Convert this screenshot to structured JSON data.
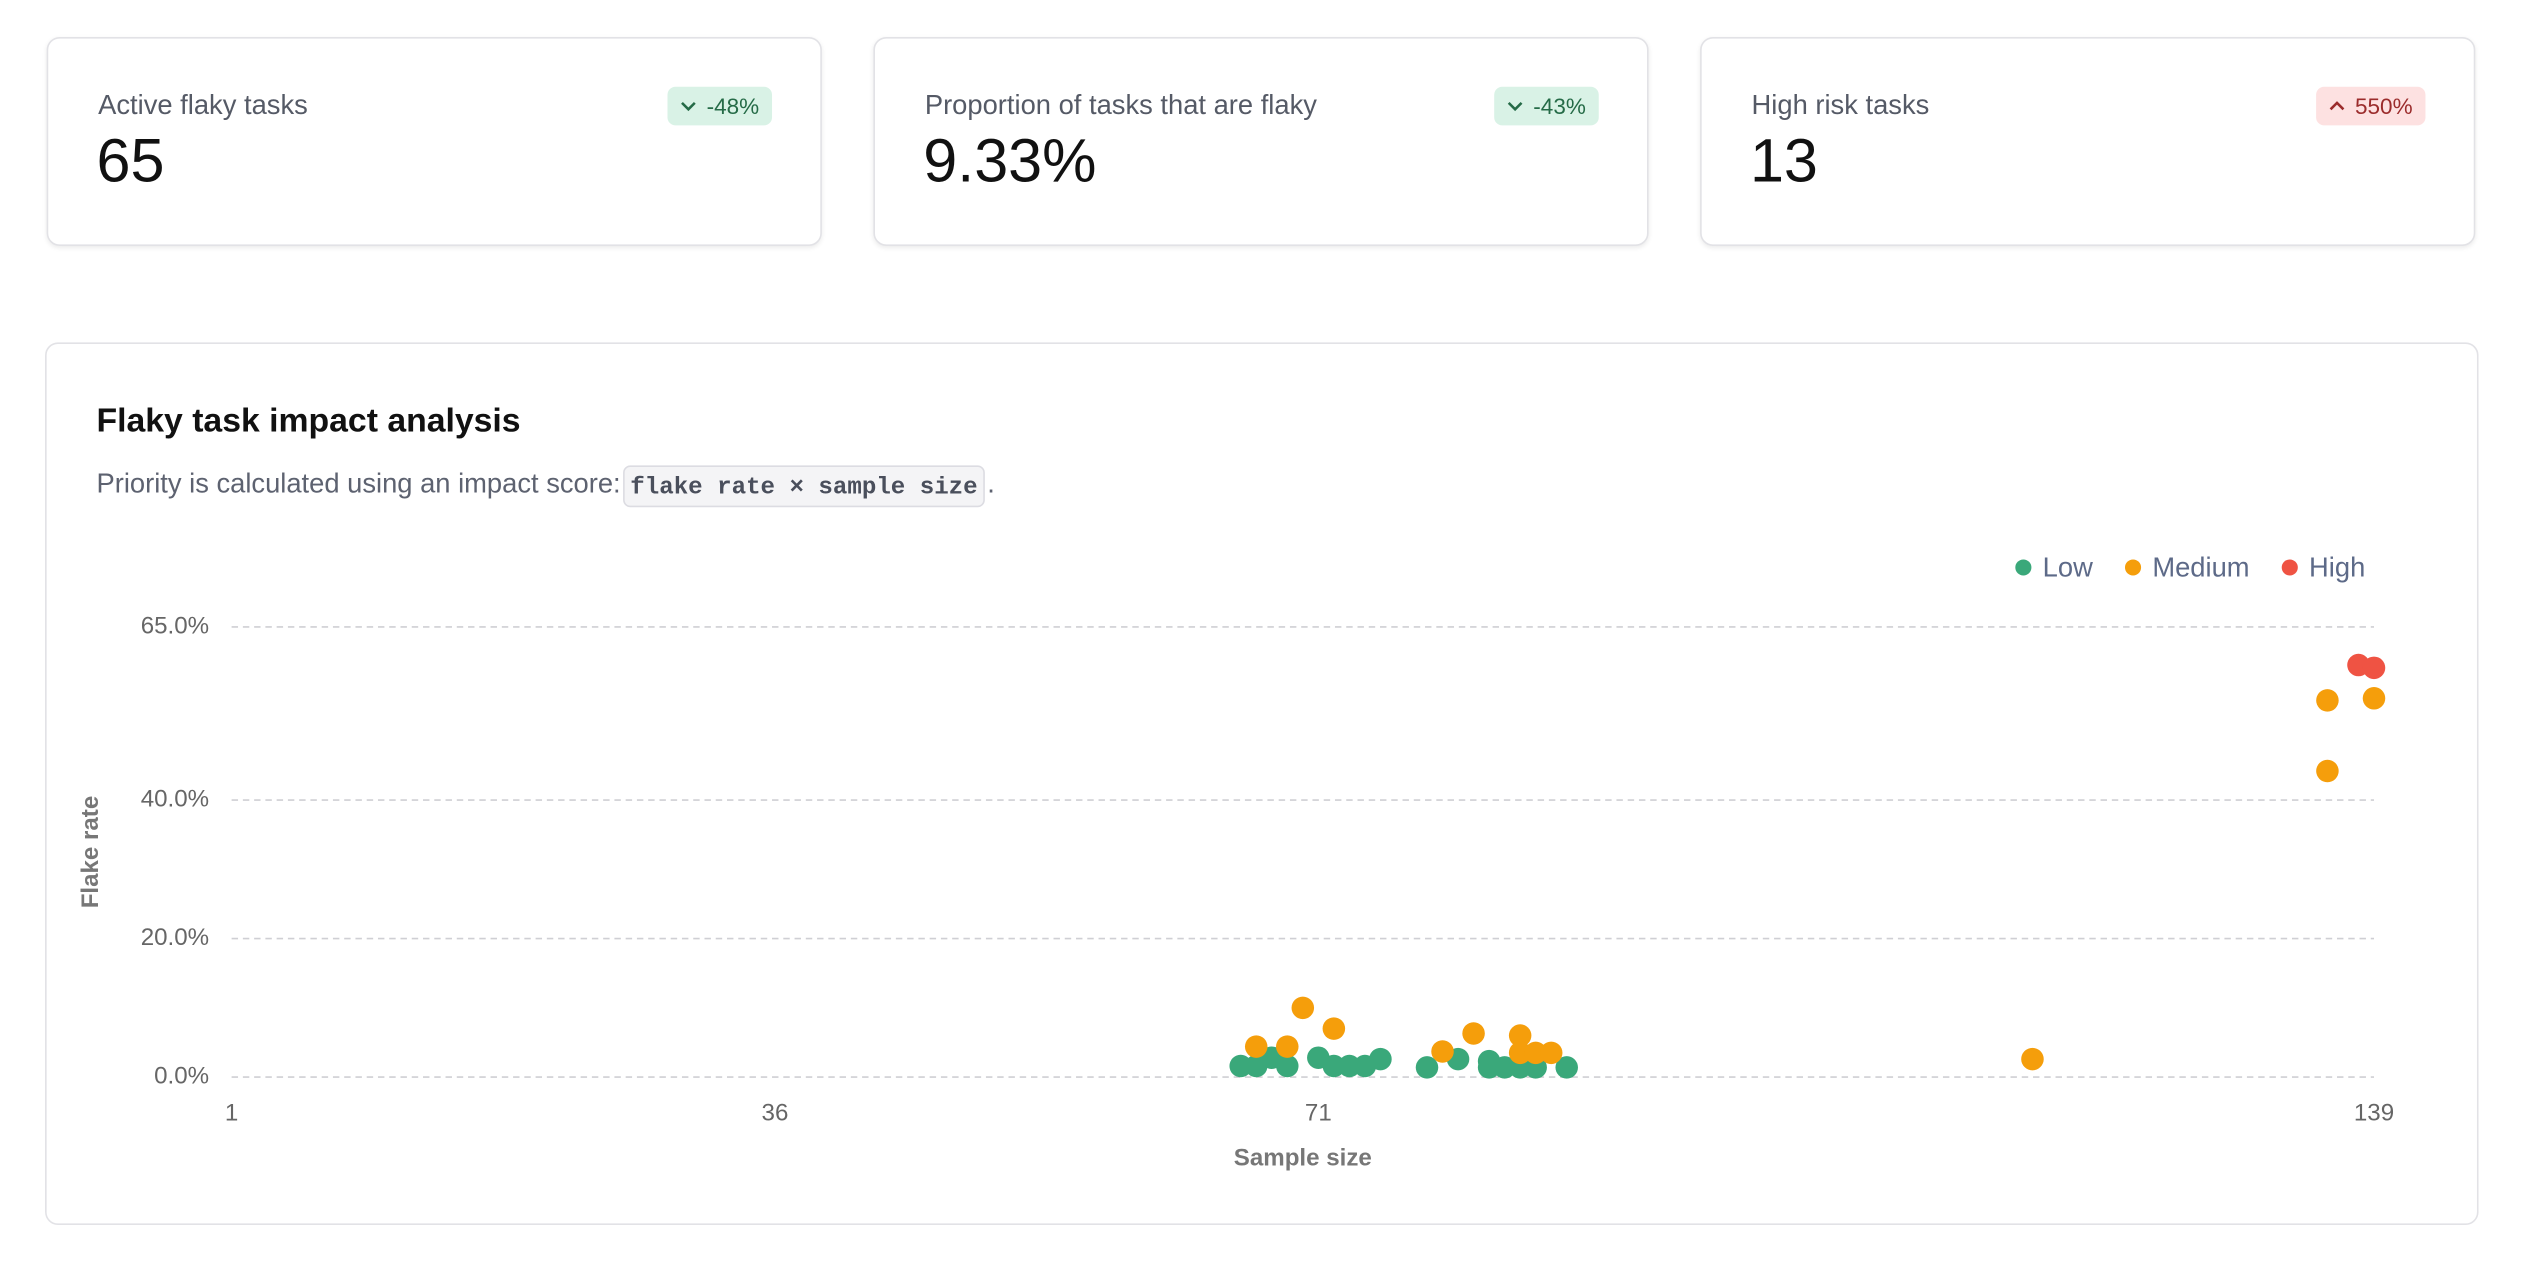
{
  "cards": [
    {
      "title": "Active flaky tasks",
      "value": "65",
      "badge": "-48%",
      "trend": "down"
    },
    {
      "title": "Proportion of tasks that are flaky",
      "value": "9.33%",
      "badge": "-43%",
      "trend": "down"
    },
    {
      "title": "High risk tasks",
      "value": "13",
      "badge": "550%",
      "trend": "up"
    }
  ],
  "chart_data": {
    "type": "scatter",
    "title": "Flaky task impact analysis",
    "description": {
      "before": "Priority is calculated using an impact score: ",
      "code": "flake rate × sample size",
      "after": "."
    },
    "x_label": "Sample size",
    "y_label": "Flake rate",
    "xlim": [
      1,
      139
    ],
    "xticks": [
      1,
      36,
      71,
      139
    ],
    "ylim": [
      0,
      65
    ],
    "yticks": [
      {
        "value": 0,
        "label": "0.0%"
      },
      {
        "value": 20,
        "label": "20.0%"
      },
      {
        "value": 40,
        "label": "40.0%"
      },
      {
        "value": 65,
        "label": "65.0%"
      }
    ],
    "grid": true,
    "legend": "top-right",
    "series": [
      {
        "name": "Low",
        "color": "#3aa87a",
        "x": [
          66,
          67,
          68,
          69,
          71,
          72,
          73,
          74,
          75,
          78,
          80,
          82,
          82,
          83,
          84,
          85,
          87
        ],
        "values": [
          1.6,
          1.6,
          2.8,
          1.6,
          2.8,
          1.6,
          1.6,
          1.6,
          2.6,
          1.4,
          2.6,
          2.3,
          1.4,
          1.4,
          1.4,
          1.4,
          1.4
        ]
      },
      {
        "name": "Medium",
        "color": "#f59e0b",
        "x": [
          67,
          69,
          70,
          72,
          79,
          81,
          84,
          84,
          85,
          86,
          117,
          136,
          139,
          136
        ],
        "values": [
          4.4,
          4.4,
          10.0,
          7.0,
          3.7,
          6.3,
          6.0,
          3.5,
          3.5,
          3.5,
          2.6,
          54.4,
          54.7,
          44.2
        ]
      },
      {
        "name": "High",
        "color": "#ef5343",
        "x": [
          138,
          139
        ],
        "values": [
          59.5,
          59.1
        ]
      }
    ]
  }
}
